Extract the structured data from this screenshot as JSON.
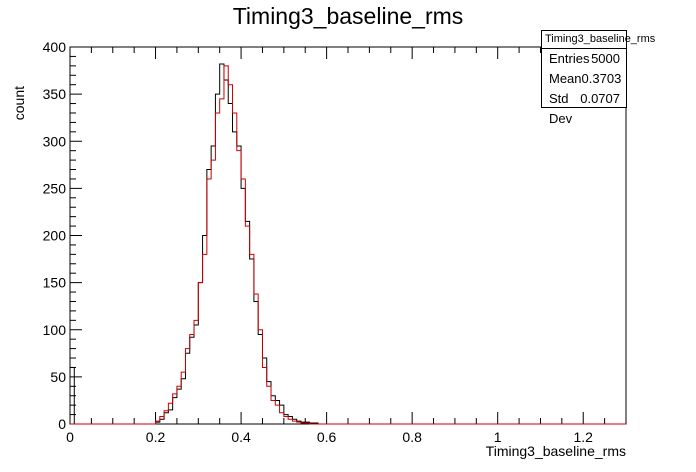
{
  "chart_data": {
    "type": "histogram",
    "title": "Timing3_baseline_rms",
    "xlabel": "Timing3_baseline_rms",
    "ylabel": "count",
    "xlim": [
      0,
      1.3
    ],
    "ylim": [
      0,
      400
    ],
    "bin_width": 0.01,
    "x_ticks": [
      "0",
      "0.2",
      "0.4",
      "0.6",
      "0.8",
      "1",
      "1.2"
    ],
    "y_ticks": [
      "0",
      "50",
      "100",
      "150",
      "200",
      "250",
      "300",
      "350",
      "400"
    ],
    "series": [
      {
        "color": "#000000",
        "values": [
          60,
          0,
          0,
          0,
          0,
          0,
          0,
          0,
          0,
          0,
          0,
          0,
          0,
          0,
          0,
          0,
          0,
          0,
          0,
          0,
          2,
          5,
          12,
          15,
          28,
          37,
          48,
          75,
          92,
          105,
          150,
          200,
          270,
          295,
          350,
          382,
          365,
          340,
          310,
          295,
          250,
          215,
          175,
          130,
          95,
          70,
          45,
          30,
          25,
          20,
          10,
          8,
          5,
          3,
          2,
          2,
          1,
          1,
          0,
          0,
          0,
          0,
          0,
          0,
          0,
          0,
          0,
          0,
          0,
          0,
          0,
          0,
          0,
          0,
          0,
          0,
          0,
          0,
          0,
          0,
          0,
          0,
          0,
          0,
          0,
          0,
          0,
          0,
          0,
          0,
          0,
          0,
          0,
          0,
          0,
          0,
          0,
          0,
          0,
          0,
          0,
          0,
          0,
          0,
          0,
          0,
          0,
          0,
          0,
          0,
          0,
          0,
          0,
          0,
          0,
          0,
          0,
          0,
          0,
          0,
          0,
          0,
          0,
          0,
          0,
          0,
          0,
          0,
          0,
          0
        ]
      },
      {
        "color": "#cc0000",
        "values": [
          0,
          0,
          0,
          0,
          0,
          0,
          0,
          0,
          0,
          0,
          0,
          0,
          0,
          0,
          0,
          0,
          0,
          0,
          0,
          0,
          3,
          8,
          14,
          22,
          32,
          40,
          55,
          80,
          95,
          110,
          150,
          180,
          260,
          280,
          330,
          345,
          380,
          360,
          330,
          290,
          260,
          210,
          180,
          138,
          100,
          60,
          40,
          25,
          20,
          12,
          8,
          5,
          3,
          2,
          1,
          1,
          0,
          0,
          0,
          0,
          0,
          0,
          0,
          0,
          0,
          0,
          0,
          0,
          0,
          0,
          0,
          0,
          0,
          0,
          0,
          0,
          0,
          0,
          0,
          0,
          0,
          0,
          0,
          0,
          0,
          0,
          0,
          0,
          0,
          0,
          0,
          0,
          0,
          0,
          0,
          0,
          0,
          0,
          0,
          0,
          0,
          0,
          0,
          0,
          0,
          0,
          0,
          0,
          0,
          0,
          0,
          0,
          0,
          0,
          0,
          0,
          0,
          0,
          0,
          0,
          0,
          0,
          0,
          0,
          0,
          0,
          0,
          0,
          0,
          0
        ]
      }
    ],
    "stats": {
      "title": "Timing3_baseline_rms",
      "rows": [
        {
          "label": "Entries",
          "value": "5000"
        },
        {
          "label": "Mean",
          "value": "0.3703"
        },
        {
          "label": "Std Dev",
          "value": "0.0707"
        }
      ]
    }
  }
}
